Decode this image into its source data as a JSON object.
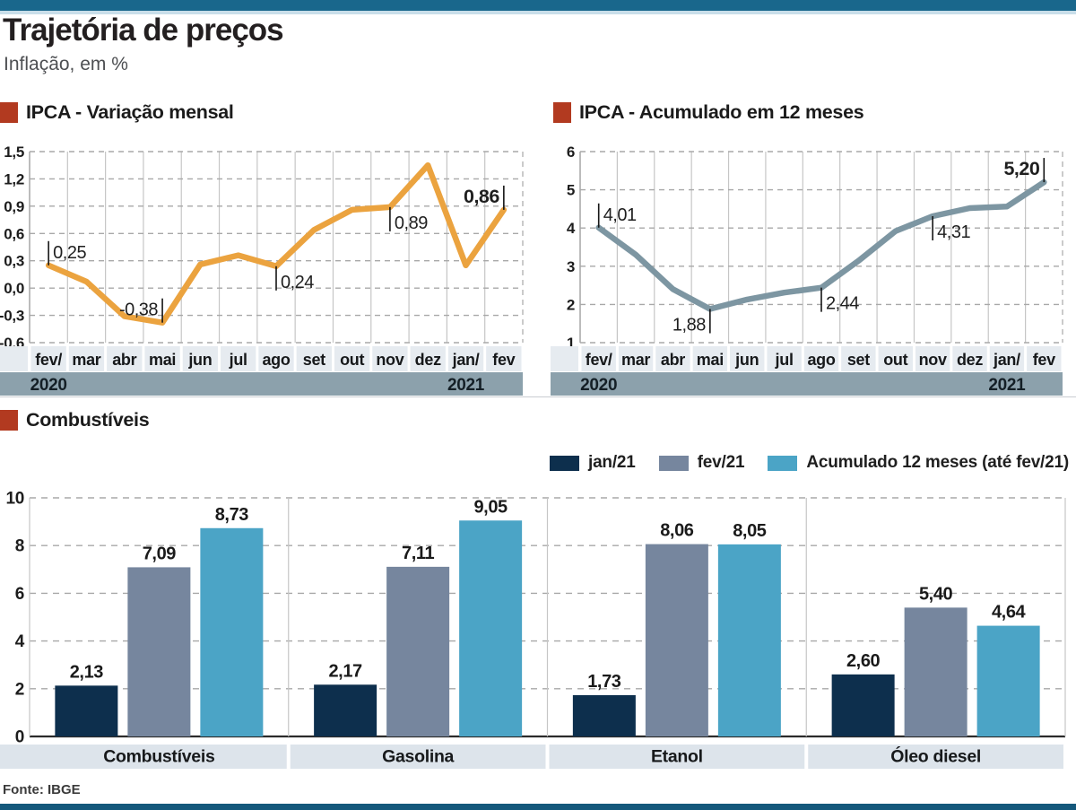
{
  "header": {
    "title": "Trajetória de preços",
    "subtitle": "Inflação, em %"
  },
  "footer": {
    "source": "Fonte: IBGE"
  },
  "colors": {
    "top_bar": "#19678C",
    "top_bar_light": "#C9DEE9",
    "accent_red": "#B23A20",
    "orange_line": "#EBA33F",
    "steel_line": "#7D96A2",
    "navy": "#0D2F4D",
    "gray_blue": "#76869E",
    "light_blue": "#4BA4C6",
    "month_band": "#E6EBF0",
    "year_band": "#8CA1AC",
    "category_band": "#DDE4EB",
    "grid_dash": "#A8A8A8",
    "grid_vert": "#C6C6C6",
    "axis_text": "#1D1D1D",
    "zero_axis": "#2B2B2B",
    "bottom_bar": "#14587B",
    "divider": "#C9CDD1"
  },
  "chart_data": [
    {
      "id": "ipca-variacao-mensal",
      "type": "line",
      "title": "IPCA - Variação mensal",
      "line_color": "#EBA33F",
      "categories": [
        "fev/",
        "mar",
        "abr",
        "mai",
        "jun",
        "jul",
        "ago",
        "set",
        "out",
        "nov",
        "dez",
        "jan/",
        "fev"
      ],
      "year_labels": [
        {
          "index": 0,
          "text": "2020"
        },
        {
          "index": 11,
          "text": "2021"
        }
      ],
      "values": [
        0.25,
        0.07,
        -0.31,
        -0.38,
        0.26,
        0.36,
        0.24,
        0.64,
        0.86,
        0.89,
        1.35,
        0.25,
        0.86
      ],
      "ylim": [
        -0.6,
        1.5
      ],
      "ytick_labels": [
        "1,5",
        "1,2",
        "0,9",
        "0,6",
        "0,3",
        "0,0",
        "-0,3",
        "-0,6"
      ],
      "grid": "on",
      "point_labels": [
        {
          "index": 0,
          "text": "0,25",
          "side": "above-right",
          "bold": false
        },
        {
          "index": 3,
          "text": "-0,38",
          "side": "above-left",
          "bold": false
        },
        {
          "index": 6,
          "text": "0,24",
          "side": "below-right",
          "bold": false
        },
        {
          "index": 9,
          "text": "0,89",
          "side": "below-right",
          "bold": false
        },
        {
          "index": 12,
          "text": "0,86",
          "side": "above-left",
          "bold": true
        }
      ]
    },
    {
      "id": "ipca-acumulado-12-meses",
      "type": "line",
      "title": "IPCA - Acumulado em 12 meses",
      "line_color": "#7D96A2",
      "categories": [
        "fev/",
        "mar",
        "abr",
        "mai",
        "jun",
        "jul",
        "ago",
        "set",
        "out",
        "nov",
        "dez",
        "jan/",
        "fev"
      ],
      "year_labels": [
        {
          "index": 0,
          "text": "2020"
        },
        {
          "index": 11,
          "text": "2021"
        }
      ],
      "values": [
        4.01,
        3.3,
        2.4,
        1.88,
        2.13,
        2.31,
        2.44,
        3.14,
        3.92,
        4.31,
        4.52,
        4.56,
        5.2
      ],
      "ylim": [
        1,
        6
      ],
      "ytick_labels": [
        "6",
        "5",
        "4",
        "3",
        "2",
        "1"
      ],
      "grid": "on",
      "point_labels": [
        {
          "index": 0,
          "text": "4,01",
          "side": "above-right",
          "bold": false
        },
        {
          "index": 3,
          "text": "1,88",
          "side": "below-left",
          "bold": false
        },
        {
          "index": 6,
          "text": "2,44",
          "side": "below-right",
          "bold": false
        },
        {
          "index": 9,
          "text": "4,31",
          "side": "below-right",
          "bold": false
        },
        {
          "index": 12,
          "text": "5,20",
          "side": "above-left",
          "bold": true
        }
      ]
    },
    {
      "id": "combustiveis",
      "type": "bar",
      "title": "Combustíveis",
      "categories": [
        "Combustíveis",
        "Gasolina",
        "Etanol",
        "Óleo diesel"
      ],
      "series": [
        {
          "name": "jan/21",
          "color": "#0D2F4D",
          "values": [
            2.13,
            2.17,
            1.73,
            2.6
          ],
          "value_labels": [
            "2,13",
            "2,17",
            "1,73",
            "2,60"
          ]
        },
        {
          "name": "fev/21",
          "color": "#76869E",
          "values": [
            7.09,
            7.11,
            8.06,
            5.4
          ],
          "value_labels": [
            "7,09",
            "7,11",
            "8,06",
            "5,40"
          ]
        },
        {
          "name": "Acumulado 12 meses (até fev/21)",
          "color": "#4BA4C6",
          "values": [
            8.73,
            9.05,
            8.05,
            4.64
          ],
          "value_labels": [
            "8,73",
            "9,05",
            "8,05",
            "4,64"
          ]
        }
      ],
      "ylim": [
        0,
        10
      ],
      "ytick_labels": [
        "10",
        "8",
        "6",
        "4",
        "2",
        "0"
      ],
      "grid": "on",
      "legend_position": "top-right"
    }
  ]
}
